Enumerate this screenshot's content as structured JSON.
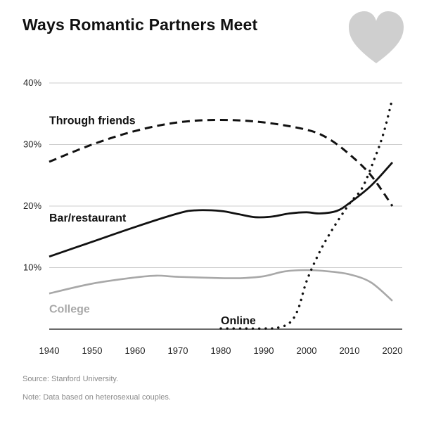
{
  "title": "Ways Romantic Partners Meet",
  "footnotes": {
    "source": "Source: Stanford University.",
    "note": "Note: Data based on heterosexual couples."
  },
  "icon": "heart-icon",
  "colors": {
    "heart": "#cfcfcf",
    "ink": "#111111",
    "college": "#a8a8a8",
    "grid": "#cccccc"
  },
  "chart_data": {
    "type": "line",
    "title": "Ways Romantic Partners Meet",
    "xlabel": "",
    "ylabel": "",
    "xlim": [
      1940,
      2020
    ],
    "ylim": [
      0,
      40
    ],
    "grid": true,
    "x_ticks": [
      1940,
      1950,
      1960,
      1970,
      1980,
      1990,
      2000,
      2010,
      2020
    ],
    "y_ticks": [
      {
        "value": 10,
        "label": "10%"
      },
      {
        "value": 20,
        "label": "20%"
      },
      {
        "value": 30,
        "label": "30%"
      },
      {
        "value": 40,
        "label": "40%"
      }
    ],
    "series": [
      {
        "name": "Through friends",
        "style": "dashed",
        "color": "#111111",
        "points": [
          [
            1940,
            27.2
          ],
          [
            1950,
            30.0
          ],
          [
            1960,
            32.2
          ],
          [
            1970,
            33.6
          ],
          [
            1980,
            34.0
          ],
          [
            1990,
            33.6
          ],
          [
            2000,
            32.4
          ],
          [
            2005,
            31.0
          ],
          [
            2010,
            28.4
          ],
          [
            2015,
            25.0
          ],
          [
            2020,
            20.0
          ]
        ]
      },
      {
        "name": "Bar/restaurant",
        "style": "solid",
        "color": "#111111",
        "points": [
          [
            1940,
            11.8
          ],
          [
            1950,
            14.2
          ],
          [
            1960,
            16.6
          ],
          [
            1970,
            18.8
          ],
          [
            1974,
            19.3
          ],
          [
            1980,
            19.2
          ],
          [
            1984,
            18.7
          ],
          [
            1988,
            18.2
          ],
          [
            1992,
            18.3
          ],
          [
            1996,
            18.8
          ],
          [
            2000,
            19.0
          ],
          [
            2003,
            18.8
          ],
          [
            2007,
            19.2
          ],
          [
            2010,
            20.5
          ],
          [
            2015,
            23.3
          ],
          [
            2020,
            27.1
          ]
        ]
      },
      {
        "name": "College",
        "style": "solid",
        "color": "#a8a8a8",
        "points": [
          [
            1940,
            5.8
          ],
          [
            1950,
            7.4
          ],
          [
            1960,
            8.4
          ],
          [
            1965,
            8.7
          ],
          [
            1970,
            8.5
          ],
          [
            1980,
            8.3
          ],
          [
            1985,
            8.3
          ],
          [
            1990,
            8.6
          ],
          [
            1995,
            9.4
          ],
          [
            2000,
            9.6
          ],
          [
            2005,
            9.4
          ],
          [
            2010,
            8.9
          ],
          [
            2015,
            7.6
          ],
          [
            2020,
            4.6
          ]
        ]
      },
      {
        "name": "Online",
        "style": "dotted",
        "color": "#111111",
        "points": [
          [
            1980,
            0.1
          ],
          [
            1985,
            0.1
          ],
          [
            1990,
            0.1
          ],
          [
            1993,
            0.2
          ],
          [
            1996,
            1.0
          ],
          [
            1998,
            3.2
          ],
          [
            2000,
            7.8
          ],
          [
            2003,
            12.5
          ],
          [
            2006,
            16.2
          ],
          [
            2010,
            20.4
          ],
          [
            2013,
            23.0
          ],
          [
            2016,
            28.0
          ],
          [
            2018,
            32.0
          ],
          [
            2020,
            37.5
          ]
        ]
      }
    ],
    "labels": {
      "Through friends": {
        "x": 1940,
        "y": 34
      },
      "Bar/restaurant": {
        "x": 1940,
        "y": 18.2
      },
      "College": {
        "x": 1940,
        "y": 3.4
      },
      "Online": {
        "x": 1980,
        "y": 1.5
      }
    }
  }
}
